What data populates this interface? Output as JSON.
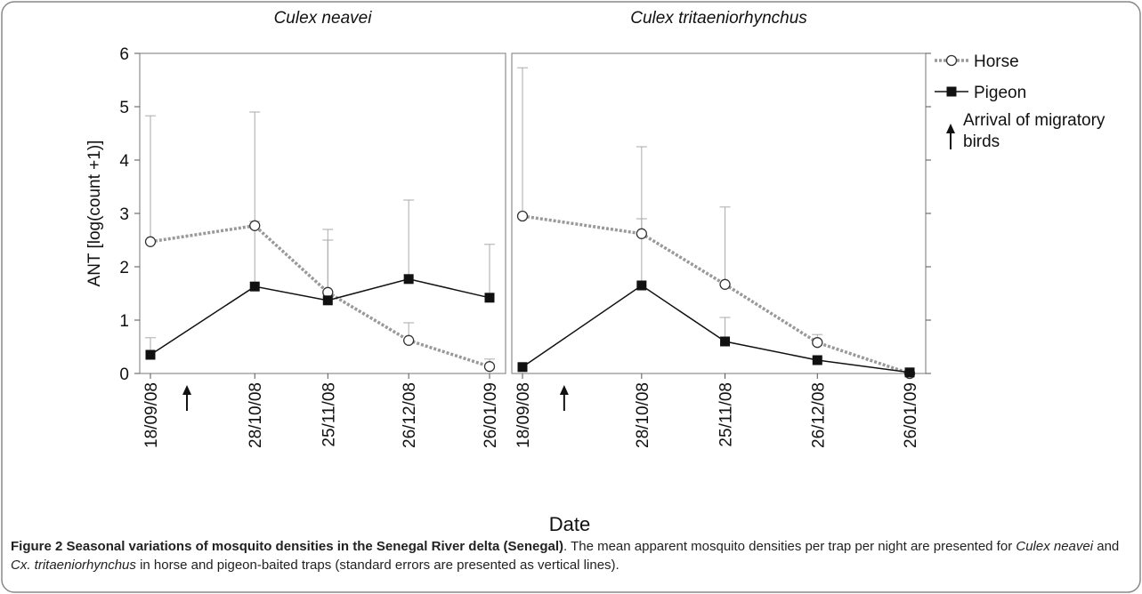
{
  "chart_data": [
    {
      "type": "line",
      "title": "Culex neavei",
      "x": [
        "18/09/08",
        "28/10/08",
        "25/11/08",
        "26/12/08",
        "26/01/09"
      ],
      "series": [
        {
          "name": "Horse",
          "color": "#999999",
          "marker": "circle",
          "dashed": true,
          "values": [
            2.47,
            2.77,
            1.52,
            0.62,
            0.13
          ],
          "errors": [
            2.36,
            2.13,
            1.18,
            0.33,
            0.14
          ]
        },
        {
          "name": "Pigeon",
          "color": "#111111",
          "marker": "square",
          "dashed": false,
          "values": [
            0.35,
            1.63,
            1.37,
            1.77,
            1.42
          ],
          "errors": [
            0.32,
            1.22,
            1.13,
            1.48,
            1.0
          ]
        }
      ],
      "ylim": [
        0,
        6
      ],
      "yticks": [
        0,
        1,
        2,
        3,
        4,
        5,
        6
      ],
      "ytick_side": "left",
      "ytick_labels": true
    },
    {
      "type": "line",
      "title": "Culex tritaeniorhynchus",
      "x": [
        "18/09/08",
        "28/10/08",
        "25/11/08",
        "26/12/08",
        "26/01/09"
      ],
      "series": [
        {
          "name": "Horse",
          "color": "#999999",
          "marker": "circle",
          "dashed": true,
          "values": [
            2.95,
            2.62,
            1.67,
            0.58,
            0.0
          ],
          "errors": [
            2.78,
            1.63,
            1.45,
            0.15,
            0.0
          ]
        },
        {
          "name": "Pigeon",
          "color": "#111111",
          "marker": "square",
          "dashed": false,
          "values": [
            0.12,
            1.65,
            0.6,
            0.25,
            0.02
          ],
          "errors": [
            0.0,
            1.25,
            0.45,
            0.05,
            0.0
          ]
        }
      ],
      "ylim": [
        0,
        6
      ],
      "yticks": [
        0,
        1,
        2,
        3,
        4,
        5,
        6
      ],
      "ytick_side": "right",
      "ytick_labels": false
    }
  ],
  "ylabel": "ANT [log(count +1)]",
  "xlabel": "Date",
  "legend_note": "Arrival of migratory birds",
  "caption": {
    "bold": "Figure 2 Seasonal variations of mosquito densities in the Senegal River delta (Senegal)",
    "parts": [
      ". The mean apparent mosquito densities per trap per night are presented for ",
      "Culex neavei",
      " and ",
      "Cx. tritaeniorhynchus",
      " in horse and pigeon-baited traps (standard errors are presented as vertical lines)."
    ]
  }
}
